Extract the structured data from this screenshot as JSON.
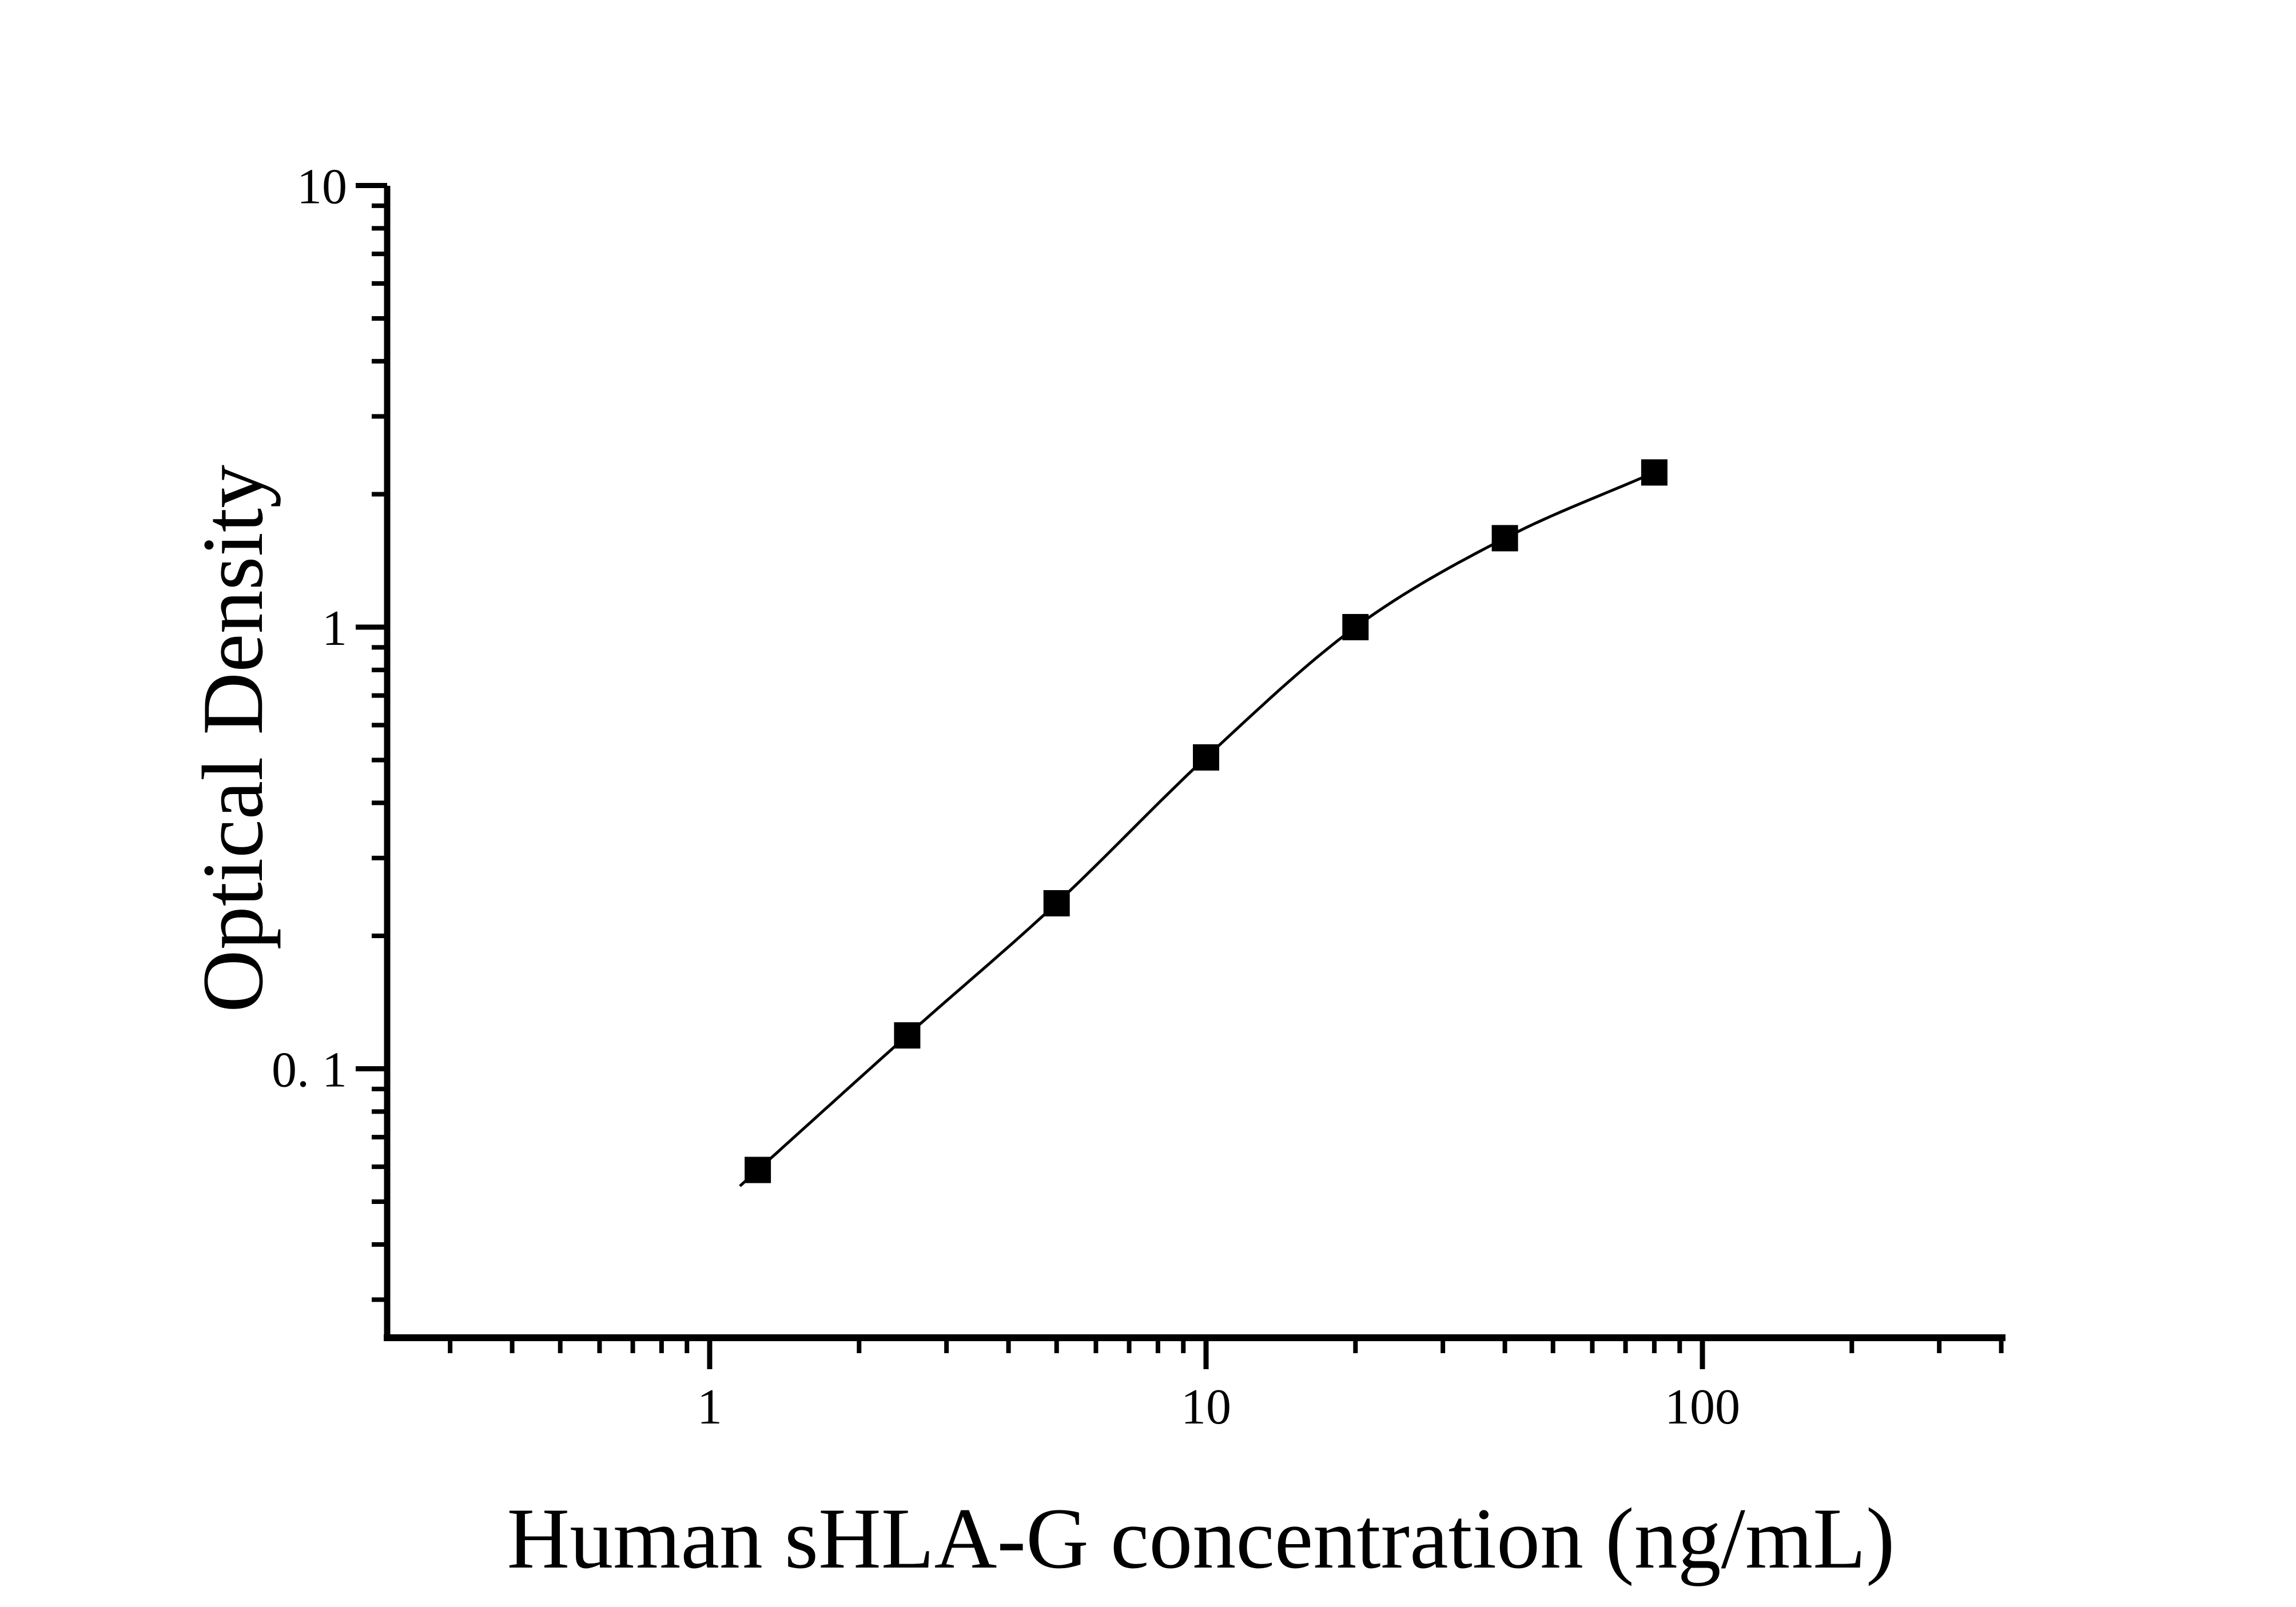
{
  "figure": {
    "background_color": "#ffffff",
    "ink_color": "#000000"
  },
  "chart_data": {
    "type": "scatter",
    "title": "",
    "xlabel": "Human sHLA-G concentration (ng/mL)",
    "ylabel": "Optical Density",
    "x_scale": "log",
    "y_scale": "log",
    "grid": false,
    "legend": "none",
    "marker": "filled-square",
    "marker_color": "#000000",
    "line_color": "#000000",
    "series": [
      {
        "name": "standard-curve",
        "x": [
          1.25,
          2.5,
          5,
          10,
          20,
          40,
          80
        ],
        "y": [
          0.059,
          0.119,
          0.237,
          0.507,
          1.0,
          1.59,
          2.24
        ]
      }
    ],
    "x_axis": {
      "range": [
        0.224,
        405
      ],
      "major_ticks": [
        {
          "value": 1,
          "label": "1"
        },
        {
          "value": 10,
          "label": "10"
        },
        {
          "value": 100,
          "label": "100"
        }
      ],
      "minor_ticks": [
        0.3,
        0.4,
        0.5,
        0.6,
        0.7,
        0.8,
        0.9,
        2,
        3,
        4,
        5,
        6,
        7,
        8,
        9,
        20,
        30,
        40,
        50,
        60,
        70,
        80,
        90,
        200,
        300,
        400
      ]
    },
    "y_axis": {
      "range": [
        0.0246,
        10
      ],
      "major_ticks": [
        {
          "value": 10,
          "label": "10"
        },
        {
          "value": 1,
          "label": "1"
        },
        {
          "value": 0.1,
          "label": "0. 1"
        }
      ],
      "minor_ticks": [
        9,
        8,
        7,
        6,
        5,
        4,
        3,
        2,
        0.9,
        0.8,
        0.7,
        0.6,
        0.5,
        0.4,
        0.3,
        0.2,
        0.09,
        0.08,
        0.07,
        0.06,
        0.05,
        0.04,
        0.03
      ]
    }
  }
}
